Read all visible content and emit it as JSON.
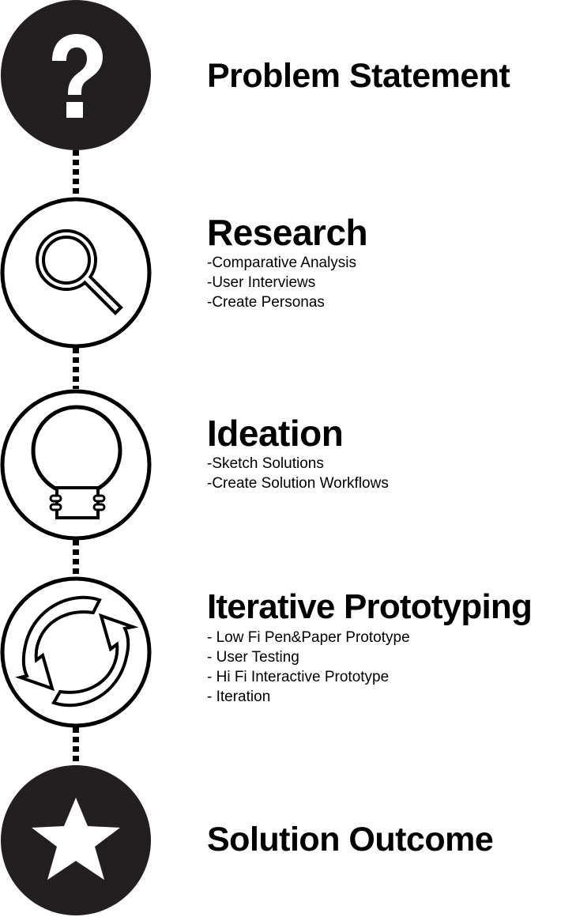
{
  "steps": [
    {
      "title": "Problem Statement",
      "icon": "question-mark-icon",
      "items": []
    },
    {
      "title": "Research",
      "icon": "magnifying-glass-icon",
      "items": [
        "-Comparative Analysis",
        "-User Interviews",
        "-Create Personas"
      ]
    },
    {
      "title": "Ideation",
      "icon": "lightbulb-icon",
      "items": [
        "-Sketch Solutions",
        "-Create Solution Workflows"
      ]
    },
    {
      "title": "Iterative Prototyping",
      "icon": "cycle-arrows-icon",
      "items": [
        "- Low Fi Pen&Paper Prototype",
        "- User Testing",
        "- Hi Fi Interactive Prototype",
        "- Iteration"
      ]
    },
    {
      "title": "Solution Outcome",
      "icon": "star-icon",
      "items": []
    }
  ],
  "colors": {
    "ink": "#000000",
    "paper": "#ffffff",
    "filled_circle": "#231f20"
  }
}
